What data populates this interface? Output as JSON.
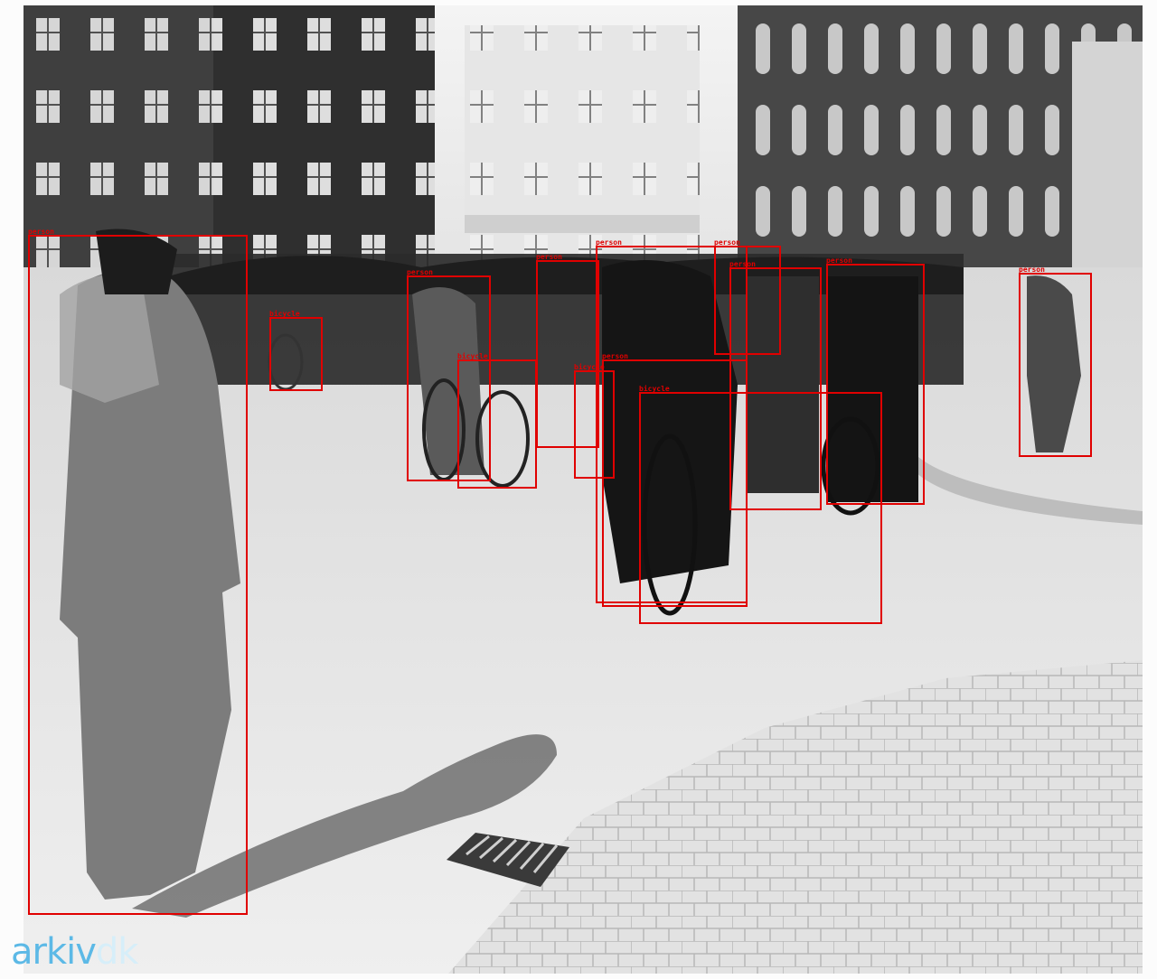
{
  "watermark": {
    "brand": "arkiv",
    "suffix": "dk",
    "brand_color": "#5cb9e6",
    "suffix_color": "#d6eef9"
  },
  "annotation_color": "#e00000",
  "detections": [
    {
      "label": "person"
    },
    {
      "label": "bicycle"
    },
    {
      "label": "person"
    },
    {
      "label": "bicycle"
    },
    {
      "label": "person"
    },
    {
      "label": "bicycle"
    },
    {
      "label": "person"
    },
    {
      "label": "person"
    },
    {
      "label": "person"
    },
    {
      "label": "bicycle"
    },
    {
      "label": "person"
    },
    {
      "label": "person"
    },
    {
      "label": "person"
    }
  ]
}
